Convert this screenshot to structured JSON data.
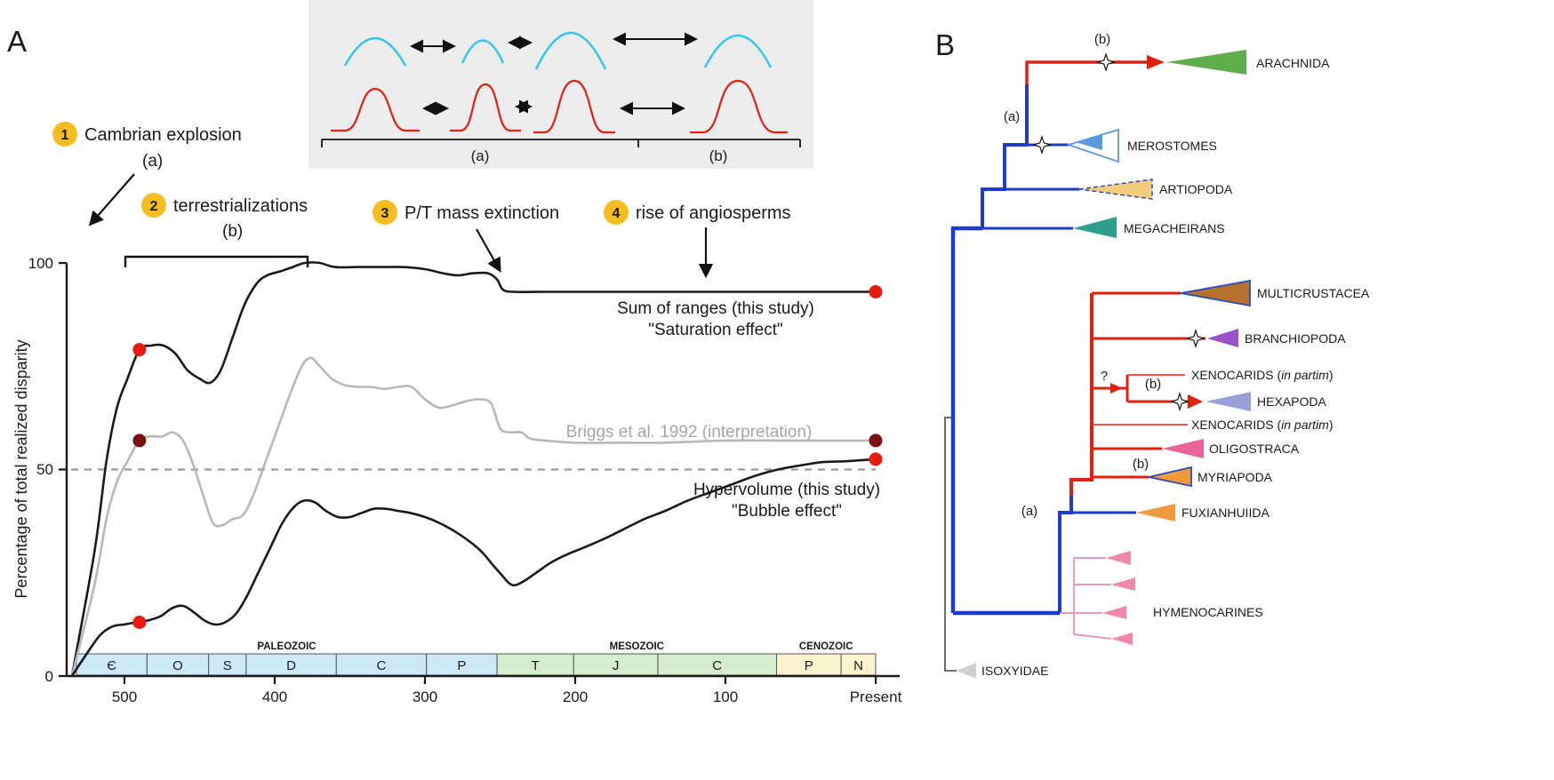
{
  "figure": {
    "panel_a_letter": "A",
    "panel_b_letter": "B"
  },
  "panel_a": {
    "ylabel": "Percentage of total realized disparity",
    "y_ticks": [
      "0",
      "50",
      "100"
    ],
    "annotations": [
      {
        "num": "1",
        "label": "Cambrian explosion",
        "sub": "(a)"
      },
      {
        "num": "2",
        "label": "terrestrializations",
        "sub": "(b)"
      },
      {
        "num": "3",
        "label": "P/T mass extinction"
      },
      {
        "num": "4",
        "label": "rise of angiosperms"
      }
    ],
    "annotation_badge_color": "#f5bd1f"
  },
  "inset": {
    "label_a": "(a)",
    "label_b": "(b)",
    "arc_color": "#38c6ec",
    "bell_color": "#e02010",
    "bg_color": "#ededed"
  },
  "chart_data": {
    "type": "line",
    "x_axis_direction": "time before present (Ma), 535 to 0",
    "x_range": [
      535,
      0
    ],
    "y_range": [
      0,
      100
    ],
    "reference_line": 50,
    "x_ticks": [
      {
        "ma": 500,
        "label": "500"
      },
      {
        "ma": 400,
        "label": "400"
      },
      {
        "ma": 300,
        "label": "300"
      },
      {
        "ma": 200,
        "label": "200"
      },
      {
        "ma": 100,
        "label": "100"
      },
      {
        "ma": 0,
        "label": "Present"
      }
    ],
    "series": [
      {
        "name": "Sum of ranges (this study)",
        "effect": "\"Saturation effect\"",
        "color": "#1a1a1a",
        "width": 2.6,
        "points": [
          [
            535,
            0
          ],
          [
            520,
            30
          ],
          [
            512,
            52
          ],
          [
            505,
            65
          ],
          [
            498,
            72
          ],
          [
            490,
            79
          ],
          [
            482,
            80
          ],
          [
            474,
            80
          ],
          [
            466,
            78
          ],
          [
            458,
            74
          ],
          [
            450,
            72
          ],
          [
            443,
            71
          ],
          [
            436,
            74
          ],
          [
            428,
            82
          ],
          [
            420,
            90
          ],
          [
            412,
            95
          ],
          [
            405,
            97
          ],
          [
            396,
            98
          ],
          [
            388,
            99
          ],
          [
            380,
            100
          ],
          [
            370,
            100
          ],
          [
            360,
            99
          ],
          [
            345,
            99
          ],
          [
            330,
            99
          ],
          [
            315,
            99
          ],
          [
            300,
            98.5
          ],
          [
            288,
            97.5
          ],
          [
            278,
            97
          ],
          [
            268,
            97.5
          ],
          [
            258,
            97.5
          ],
          [
            252,
            96
          ],
          [
            248,
            93.5
          ],
          [
            240,
            93
          ],
          [
            220,
            93
          ],
          [
            200,
            93
          ],
          [
            150,
            93
          ],
          [
            100,
            93
          ],
          [
            50,
            93
          ],
          [
            0,
            93
          ]
        ]
      },
      {
        "name": "Briggs et al. 1992 (interpretation)",
        "effect": "",
        "color": "#b8b8b8",
        "width": 2.6,
        "points": [
          [
            535,
            0
          ],
          [
            520,
            22
          ],
          [
            512,
            38
          ],
          [
            505,
            47
          ],
          [
            498,
            52
          ],
          [
            490,
            57
          ],
          [
            483,
            58
          ],
          [
            475,
            58
          ],
          [
            468,
            59
          ],
          [
            461,
            57
          ],
          [
            454,
            51
          ],
          [
            447,
            43
          ],
          [
            441,
            37
          ],
          [
            435,
            36.5
          ],
          [
            428,
            38
          ],
          [
            421,
            39
          ],
          [
            414,
            44
          ],
          [
            406,
            52
          ],
          [
            398,
            60
          ],
          [
            390,
            68
          ],
          [
            382,
            75
          ],
          [
            376,
            77
          ],
          [
            370,
            75
          ],
          [
            362,
            72
          ],
          [
            354,
            70.5
          ],
          [
            345,
            70
          ],
          [
            336,
            70
          ],
          [
            327,
            69.5
          ],
          [
            318,
            70
          ],
          [
            309,
            70
          ],
          [
            300,
            67
          ],
          [
            291,
            65
          ],
          [
            282,
            65.5
          ],
          [
            273,
            66.5
          ],
          [
            264,
            67
          ],
          [
            256,
            66
          ],
          [
            250,
            60
          ],
          [
            244,
            59
          ],
          [
            236,
            59
          ],
          [
            230,
            57.5
          ],
          [
            220,
            57
          ],
          [
            200,
            56.5
          ],
          [
            170,
            56.5
          ],
          [
            140,
            56.5
          ],
          [
            100,
            57
          ],
          [
            60,
            57
          ],
          [
            0,
            57
          ]
        ]
      },
      {
        "name": "Hypervolume (this study)",
        "effect": "\"Bubble effect\"",
        "color": "#1a1a1a",
        "width": 2.6,
        "points": [
          [
            535,
            0
          ],
          [
            524,
            6
          ],
          [
            516,
            10
          ],
          [
            508,
            12
          ],
          [
            500,
            12.5
          ],
          [
            492,
            13
          ],
          [
            484,
            13.5
          ],
          [
            476,
            14.5
          ],
          [
            468,
            16.5
          ],
          [
            461,
            17
          ],
          [
            454,
            15.5
          ],
          [
            447,
            13.5
          ],
          [
            440,
            12.5
          ],
          [
            433,
            13
          ],
          [
            426,
            15
          ],
          [
            419,
            19
          ],
          [
            411,
            25
          ],
          [
            403,
            31
          ],
          [
            395,
            37
          ],
          [
            387,
            41
          ],
          [
            380,
            42.5
          ],
          [
            373,
            42
          ],
          [
            366,
            40
          ],
          [
            358,
            38.5
          ],
          [
            350,
            38.5
          ],
          [
            342,
            39.5
          ],
          [
            334,
            40.5
          ],
          [
            326,
            40.5
          ],
          [
            318,
            40
          ],
          [
            310,
            39.5
          ],
          [
            300,
            38.5
          ],
          [
            290,
            37
          ],
          [
            280,
            35
          ],
          [
            270,
            32.5
          ],
          [
            262,
            30
          ],
          [
            255,
            27
          ],
          [
            249,
            24.5
          ],
          [
            244,
            22.5
          ],
          [
            240,
            22
          ],
          [
            234,
            23
          ],
          [
            226,
            25
          ],
          [
            216,
            27.5
          ],
          [
            205,
            29.5
          ],
          [
            195,
            31
          ],
          [
            182,
            33
          ],
          [
            168,
            35.5
          ],
          [
            154,
            38
          ],
          [
            140,
            40
          ],
          [
            125,
            42.5
          ],
          [
            110,
            44.5
          ],
          [
            95,
            46.5
          ],
          [
            80,
            48.5
          ],
          [
            65,
            50
          ],
          [
            50,
            51
          ],
          [
            35,
            51.8
          ],
          [
            20,
            52
          ],
          [
            0,
            52.5
          ]
        ]
      }
    ],
    "dots": [
      {
        "ma": 490,
        "value": 79,
        "color": "#e8190f"
      },
      {
        "ma": 490,
        "value": 57,
        "color": "#7a1212"
      },
      {
        "ma": 490,
        "value": 13,
        "color": "#e8190f"
      },
      {
        "ma": 0,
        "value": 93,
        "color": "#e8190f"
      },
      {
        "ma": 0,
        "value": 57,
        "color": "#7a1212"
      },
      {
        "ma": 0,
        "value": 52.5,
        "color": "#e8190f"
      }
    ],
    "timescale": {
      "eras": [
        {
          "name": "PALEOZOIC",
          "start": 532,
          "end": 252
        },
        {
          "name": "MESOZOIC",
          "start": 252,
          "end": 66
        },
        {
          "name": "CENOZOIC",
          "start": 66,
          "end": 0
        }
      ],
      "periods": [
        {
          "abbr": "Є",
          "start": 532,
          "end": 485,
          "color": "#cde9f6"
        },
        {
          "abbr": "O",
          "start": 485,
          "end": 444,
          "color": "#cde9f6"
        },
        {
          "abbr": "S",
          "start": 444,
          "end": 419,
          "color": "#cde9f6"
        },
        {
          "abbr": "D",
          "start": 419,
          "end": 359,
          "color": "#cde9f6"
        },
        {
          "abbr": "C",
          "start": 359,
          "end": 299,
          "color": "#cde9f6"
        },
        {
          "abbr": "P",
          "start": 299,
          "end": 252,
          "color": "#cde9f6"
        },
        {
          "abbr": "T",
          "start": 252,
          "end": 201,
          "color": "#d5edcf"
        },
        {
          "abbr": "J",
          "start": 201,
          "end": 145,
          "color": "#d5edcf"
        },
        {
          "abbr": "C",
          "start": 145,
          "end": 66,
          "color": "#d5edcf"
        },
        {
          "abbr": "P",
          "start": 66,
          "end": 23,
          "color": "#fbf3cd"
        },
        {
          "abbr": "N",
          "start": 23,
          "end": 0,
          "color": "#fbf3cd"
        }
      ]
    }
  },
  "panel_b": {
    "taxa": [
      {
        "label": "ARACHNIDA",
        "color": "#5fae4e"
      },
      {
        "label": "MEROSTOMES",
        "color": "#5b9bd5"
      },
      {
        "label": "ARTIOPODA",
        "color": "#f4cd7a"
      },
      {
        "label": "MEGACHEIRANS",
        "color": "#2e9e8f"
      },
      {
        "label": "MULTICRUSTACEA",
        "color": "#b5722e"
      },
      {
        "label": "BRANCHIOPODA",
        "color": "#9b51c8"
      },
      {
        "prefix": "XENOCARIDS (",
        "italic": "in partim",
        "suffix": ")",
        "color": "#e02010"
      },
      {
        "label": "HEXAPODA",
        "color": "#98a0d8"
      },
      {
        "prefix": "XENOCARIDS (",
        "italic": "in partim",
        "suffix": ")",
        "color": "#e02010"
      },
      {
        "label": "OLIGOSTRACA",
        "color": "#e8659a"
      },
      {
        "label": "MYRIAPODA",
        "color": "#ef9b3c"
      },
      {
        "label": "FUXIANHUIIDA",
        "color": "#ef9b3c"
      },
      {
        "label": "HYMENOCARINES",
        "color": "#f08aa8"
      },
      {
        "label": "ISOXYIDAE",
        "color": "#cfcfcf"
      }
    ],
    "node_marks": {
      "a": "(a)",
      "b": "(b)",
      "question": "?"
    },
    "branch_colors": {
      "blue": "#1f3bcc",
      "red": "#e02010",
      "outgroup": "#444444"
    }
  }
}
